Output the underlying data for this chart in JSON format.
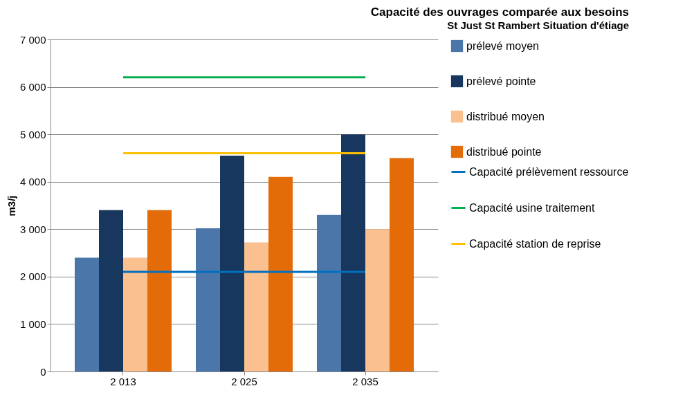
{
  "chart_data": {
    "type": "bar",
    "title": "Capacité des ouvrages comparée aux besoins",
    "subtitle": "St Just St Rambert Situation d'étiage",
    "ylabel": "m3/j",
    "categories": [
      "2 013",
      "2 025",
      "2 035"
    ],
    "series": [
      {
        "name": "prélevé moyen",
        "color": "#4a76aa",
        "values": [
          2400,
          3020,
          3300
        ]
      },
      {
        "name": "prélevé pointe",
        "color": "#17375e",
        "values": [
          3400,
          4550,
          5000
        ]
      },
      {
        "name": "distribué moyen",
        "color": "#fac090",
        "values": [
          2400,
          2720,
          3000
        ]
      },
      {
        "name": "distribué pointe",
        "color": "#e36c09",
        "values": [
          3400,
          4100,
          4500
        ]
      },
      {
        "name": "Capacité prélèvement ressource",
        "type": "line",
        "color": "#0070c0",
        "values": [
          2100,
          2100,
          2100
        ]
      },
      {
        "name": "Capacité usine traitement",
        "type": "line",
        "color": "#00b050",
        "values": [
          6200,
          6200,
          6200
        ]
      },
      {
        "name": "Capacité station de reprise",
        "type": "line",
        "color": "#ffc000",
        "values": [
          4600,
          4600,
          4600
        ]
      }
    ],
    "ylim": [
      0,
      7000
    ],
    "yticks": [
      0,
      {
        "value": 1000,
        "label": "1 000"
      },
      {
        "value": 2000,
        "label": "2 000"
      },
      {
        "value": 3000,
        "label": "3 000"
      },
      {
        "value": 4000,
        "label": "4 000"
      },
      {
        "value": 5000,
        "label": "5 000"
      },
      {
        "value": 6000,
        "label": "6 000"
      },
      {
        "value": 7000,
        "label": "7 000"
      }
    ],
    "grid": "y",
    "legend": "right"
  }
}
